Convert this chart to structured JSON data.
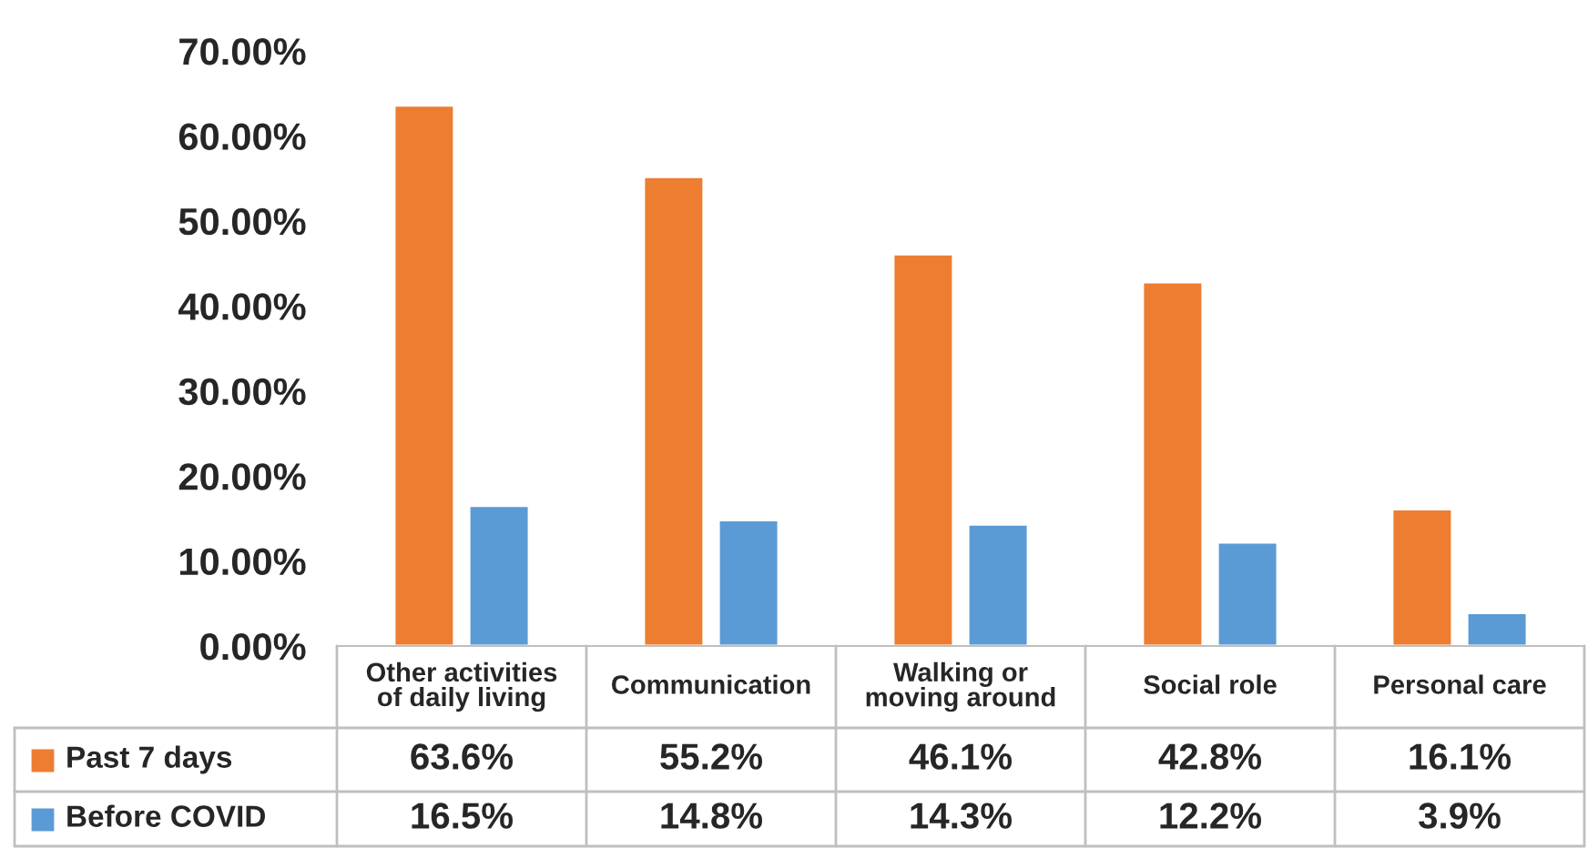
{
  "chart_data": {
    "type": "bar",
    "categories": [
      "Other activities\nof daily living",
      "Communication",
      "Walking or\nmoving around",
      "Social role",
      "Personal care"
    ],
    "series": [
      {
        "name": "Past 7 days",
        "color": "#ed7d31",
        "values": [
          63.6,
          55.2,
          46.1,
          42.8,
          16.1
        ],
        "value_labels": [
          "63.6%",
          "55.2%",
          "46.1%",
          "42.8%",
          "16.1%"
        ]
      },
      {
        "name": "Before COVID",
        "color": "#5b9bd5",
        "values": [
          16.5,
          14.8,
          14.3,
          12.2,
          3.9
        ],
        "value_labels": [
          "16.5%",
          "14.8%",
          "14.3%",
          "12.2%",
          "3.9%"
        ]
      }
    ],
    "ylim": [
      0,
      70
    ],
    "yticks": [
      {
        "value": 0,
        "label": "0.00%"
      },
      {
        "value": 10,
        "label": "10.00%"
      },
      {
        "value": 20,
        "label": "20.00%"
      },
      {
        "value": 30,
        "label": "30.00%"
      },
      {
        "value": 40,
        "label": "40.00%"
      },
      {
        "value": 50,
        "label": "50.00%"
      },
      {
        "value": 60,
        "label": "60.00%"
      },
      {
        "value": 70,
        "label": "70.00%"
      }
    ],
    "grid": false,
    "legend": "bottom"
  }
}
